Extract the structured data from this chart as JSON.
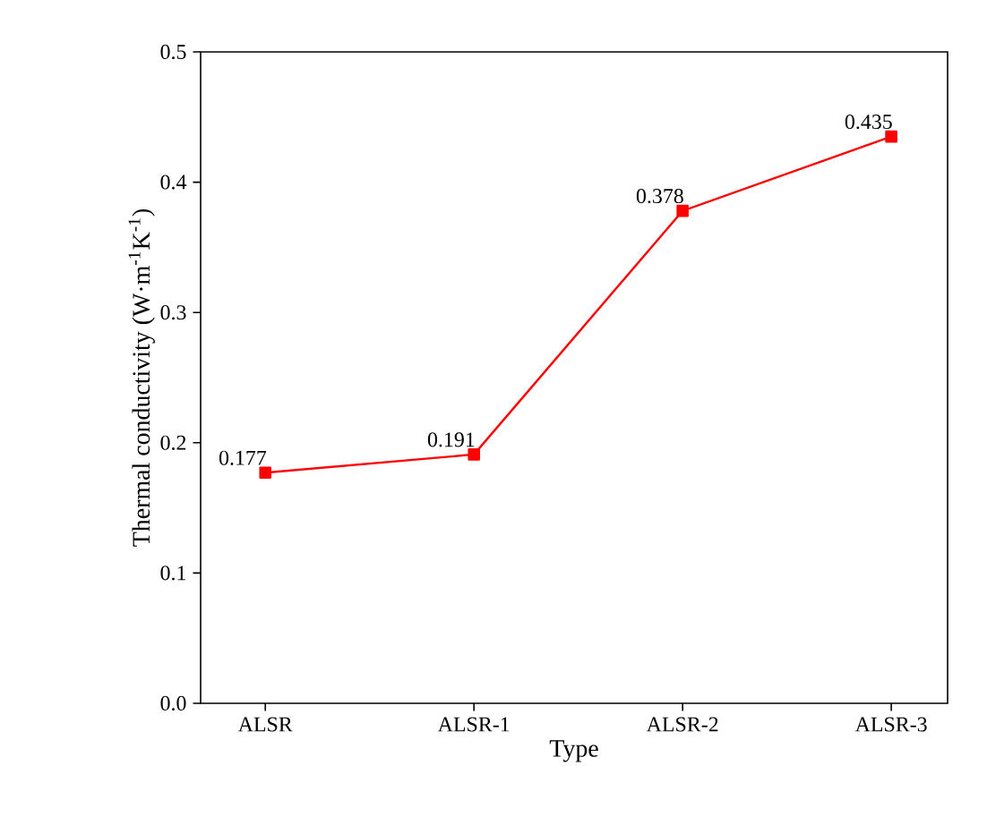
{
  "chart_data": {
    "type": "line",
    "xlabel": "Type",
    "ylabel": "Thermal conductivity (W·m$^{-1}$K$^{-1}$)",
    "categories": [
      "ALSR",
      "ALSR-1",
      "ALSR-2",
      "ALSR-3"
    ],
    "values": [
      0.177,
      0.191,
      0.378,
      0.435
    ],
    "color": "#ff0000",
    "marker": "square",
    "line_style": "solid",
    "data_labels": true,
    "ylim": [
      0,
      0.5
    ],
    "yticks": [
      {
        "value": 0,
        "label": "0.0"
      },
      0.1,
      0.2,
      0.3,
      0.4,
      0.5
    ]
  }
}
